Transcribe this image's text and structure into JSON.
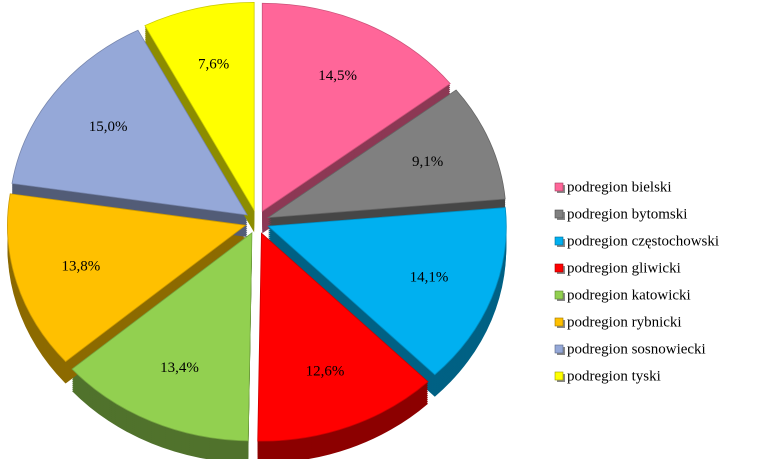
{
  "chart_data": {
    "type": "pie",
    "categories": [
      "podregion bielski",
      "podregion bytomski",
      "podregion częstochowski",
      "podregion gliwicki",
      "podregion katowicki",
      "podregion rybnicki",
      "podregion sosnowiecki",
      "podregion tyski"
    ],
    "values": [
      14.5,
      9.1,
      14.1,
      12.6,
      13.4,
      13.8,
      15.0,
      7.6
    ],
    "value_labels": [
      "14,5%",
      "9,1%",
      "14,1%",
      "12,6%",
      "13,4%",
      "13,8%",
      "15,0%",
      "7,6%"
    ],
    "colors": [
      "#ff6699",
      "#808080",
      "#00b0f0",
      "#ff0000",
      "#92d050",
      "#ffc000",
      "#95a8d8",
      "#ffff00"
    ],
    "legend": "right"
  }
}
